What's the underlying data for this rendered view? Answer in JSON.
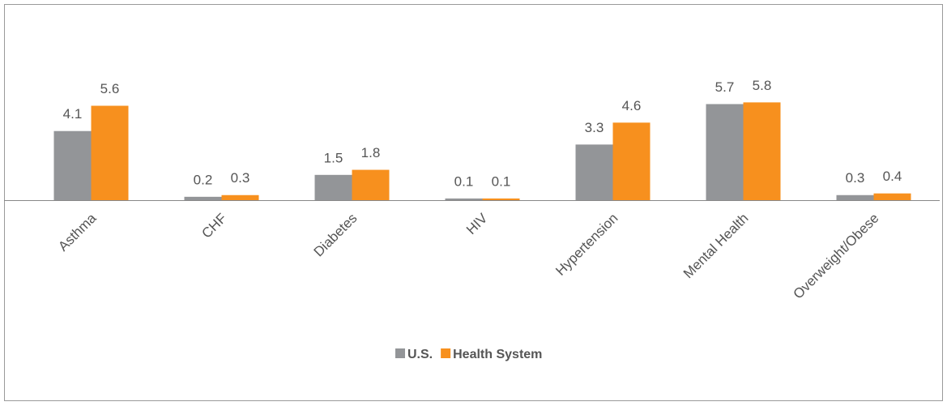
{
  "chart_data": {
    "type": "bar",
    "categories": [
      "Asthma",
      "CHF",
      "Diabetes",
      "HIV",
      "Hypertension",
      "Mental Health",
      "Overweight/Obese"
    ],
    "series": [
      {
        "name": "U.S.",
        "color": "#939598",
        "values": [
          4.1,
          0.2,
          1.5,
          0.1,
          3.3,
          5.7,
          0.3
        ]
      },
      {
        "name": "Health System",
        "color": "#f7901e",
        "values": [
          5.6,
          0.3,
          1.8,
          0.1,
          4.6,
          5.8,
          0.4
        ]
      }
    ],
    "legend": "bottom"
  }
}
